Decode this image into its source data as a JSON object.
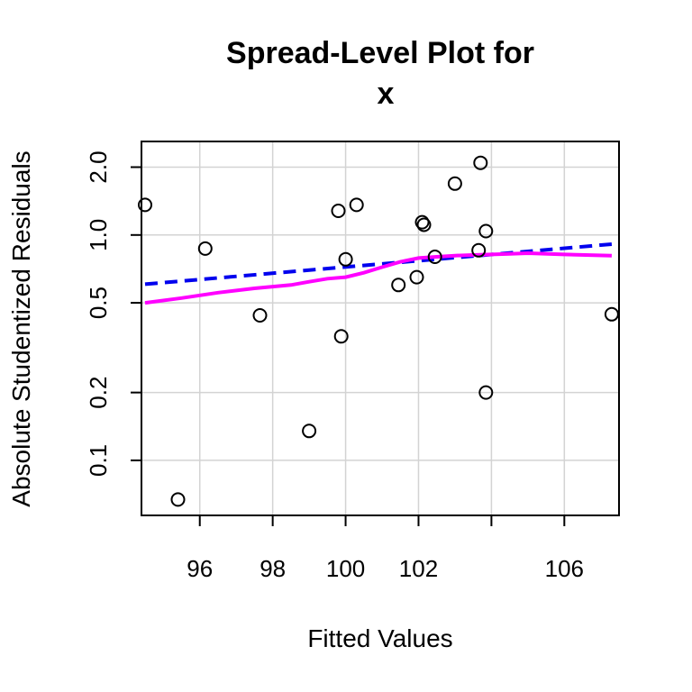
{
  "chart_data": {
    "type": "scatter",
    "title": [
      "Spread-Level Plot for",
      "x"
    ],
    "xlabel": "Fitted Values",
    "ylabel": "Absolute Studentized Residuals",
    "xlim": [
      94.4,
      107.5
    ],
    "ylim": [
      0.057,
      2.6
    ],
    "y_scale": "log",
    "x_ticks": [
      96,
      98,
      100,
      102,
      104,
      106
    ],
    "x_tick_labels": [
      "96",
      "98",
      "100",
      "102",
      "",
      "106"
    ],
    "y_ticks": [
      0.1,
      0.2,
      0.5,
      1.0,
      2.0
    ],
    "y_tick_labels": [
      "0.1",
      "0.2",
      "0.5",
      "1.0",
      "2.0"
    ],
    "grid": true,
    "points": [
      {
        "x": 94.5,
        "y": 1.36
      },
      {
        "x": 95.4,
        "y": 0.067
      },
      {
        "x": 96.15,
        "y": 0.87
      },
      {
        "x": 97.65,
        "y": 0.44
      },
      {
        "x": 99.0,
        "y": 0.135
      },
      {
        "x": 99.8,
        "y": 1.28
      },
      {
        "x": 99.88,
        "y": 0.355
      },
      {
        "x": 100.0,
        "y": 0.78
      },
      {
        "x": 100.3,
        "y": 1.36
      },
      {
        "x": 101.45,
        "y": 0.6
      },
      {
        "x": 101.95,
        "y": 0.65
      },
      {
        "x": 102.1,
        "y": 1.14
      },
      {
        "x": 102.15,
        "y": 1.11
      },
      {
        "x": 102.45,
        "y": 0.8
      },
      {
        "x": 103.0,
        "y": 1.69
      },
      {
        "x": 103.65,
        "y": 0.855
      },
      {
        "x": 103.7,
        "y": 2.09
      },
      {
        "x": 103.85,
        "y": 1.04
      },
      {
        "x": 103.85,
        "y": 0.2
      },
      {
        "x": 107.3,
        "y": 0.445
      }
    ],
    "series": [
      {
        "kind": "fit-line",
        "style": "dashed",
        "color": "#0000ee",
        "x": [
          94.5,
          107.3
        ],
        "y": [
          0.605,
          0.91
        ]
      },
      {
        "kind": "smoother",
        "style": "solid",
        "color": "#ff00ff",
        "x": [
          94.5,
          95.5,
          96.5,
          97.5,
          98.5,
          99.0,
          99.5,
          100.0,
          100.5,
          101.0,
          101.5,
          102.0,
          102.5,
          103.0,
          103.5,
          104.0,
          104.5,
          105.0,
          106.0,
          107.3
        ],
        "y": [
          0.5,
          0.525,
          0.555,
          0.58,
          0.6,
          0.62,
          0.64,
          0.65,
          0.68,
          0.72,
          0.76,
          0.79,
          0.8,
          0.81,
          0.815,
          0.82,
          0.825,
          0.83,
          0.82,
          0.81
        ]
      }
    ]
  }
}
